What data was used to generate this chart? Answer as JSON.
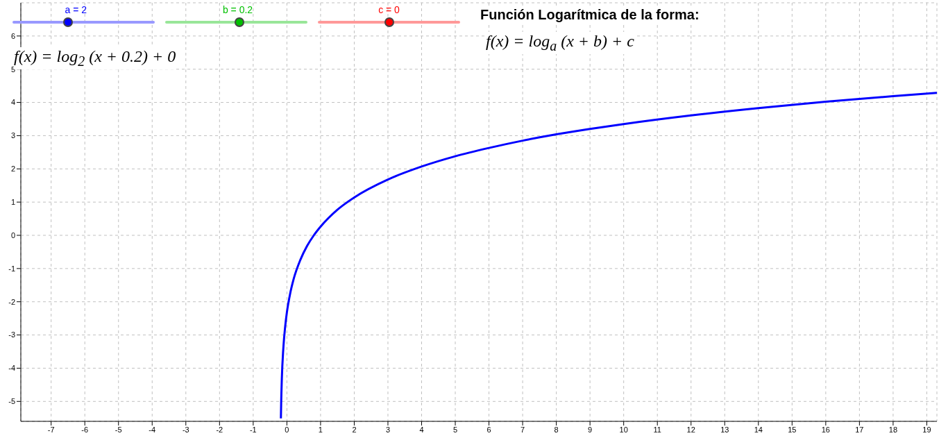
{
  "chart_data": {
    "type": "line",
    "title": "Función Logarítmica de la forma:",
    "subtitle": "f(x) = log$_{a}$ (x + b) + c",
    "annotations": [
      "a = 2",
      "b = 0.2",
      "c = 0",
      "f(x) = log$_{2}$ (x + 0.2) + 0"
    ],
    "x": [
      -0.178,
      -0.17,
      -0.15,
      -0.1,
      -0.05,
      0,
      0.1,
      0.2,
      0.4,
      0.6,
      0.8,
      1,
      1.5,
      2,
      3,
      4,
      5,
      6,
      7,
      8,
      9,
      10,
      12,
      14,
      16,
      18,
      19.3
    ],
    "series": [
      {
        "color": "#0000ff",
        "values": [
          -5.51,
          -5.06,
          -4.32,
          -3.32,
          -2.74,
          -2.32,
          -1.74,
          -1.32,
          -0.74,
          -0.32,
          0,
          0.26,
          0.77,
          1.14,
          1.68,
          2.07,
          2.38,
          2.63,
          2.85,
          3.04,
          3.2,
          3.35,
          3.61,
          3.83,
          4.02,
          4.19,
          4.29
        ]
      }
    ],
    "xlim": [
      -7.9,
      19.3
    ],
    "ylim": [
      -5.6,
      7
    ],
    "xticks": [
      -7,
      -6,
      -5,
      -4,
      -3,
      -2,
      -1,
      0,
      1,
      2,
      3,
      4,
      5,
      6,
      7,
      8,
      9,
      10,
      11,
      12,
      13,
      14,
      15,
      16,
      17,
      18,
      19
    ],
    "yticks": [
      -5,
      -4,
      -3,
      -2,
      -1,
      0,
      1,
      2,
      3,
      4,
      5,
      6
    ],
    "grid": true,
    "marker": "none",
    "line_style": "solid",
    "legend": false
  }
}
